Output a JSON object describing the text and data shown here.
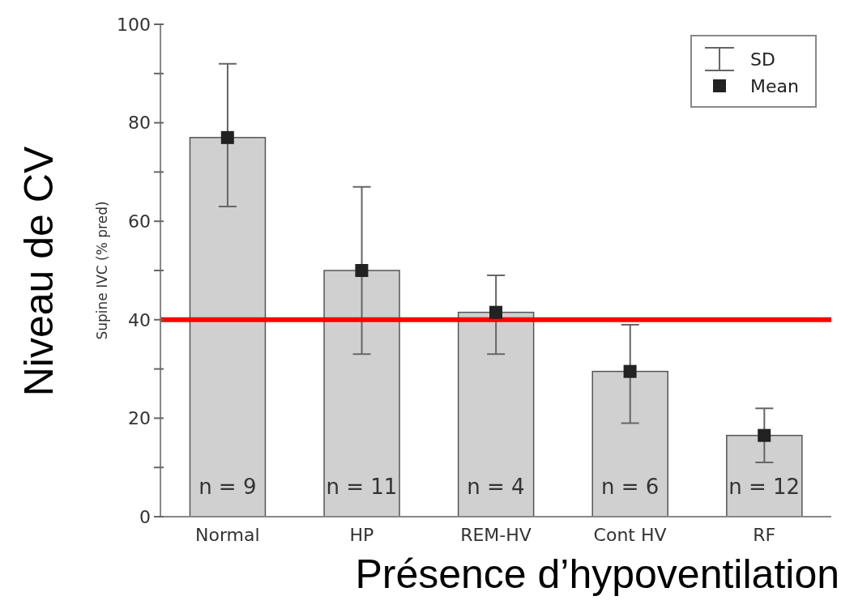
{
  "chart_data": {
    "type": "bar",
    "xlabel": "Présence d’hypoventilation",
    "ylabel": "Supine IVC (% pred)",
    "categories": [
      "Normal",
      "HP",
      "REM-HV",
      "Cont HV",
      "RF"
    ],
    "series": [
      {
        "type": "bar",
        "color": "#d0d0d0",
        "values": [
          77,
          50,
          41.5,
          29.5,
          16.5
        ],
        "errors": [
          [
            63,
            92
          ],
          [
            33,
            67
          ],
          [
            33,
            49
          ],
          [
            19,
            39
          ],
          [
            11,
            22
          ]
        ]
      },
      {
        "type": "scatter",
        "name": "Mean",
        "color": "#222222",
        "marker": "square",
        "values": [
          77,
          50,
          41.5,
          29.5,
          16.5
        ]
      }
    ],
    "ylim": [
      0,
      100
    ],
    "yticks": [
      0,
      {
        "value": 10,
        "label": null
      },
      20,
      {
        "value": 30,
        "label": null
      },
      40,
      {
        "value": 50,
        "label": null
      },
      60,
      {
        "value": 70,
        "label": null
      },
      80,
      {
        "value": 90,
        "label": null
      },
      100
    ],
    "ref_lines": [
      {
        "axis": "y",
        "value": 40,
        "color": "#ff0000"
      }
    ],
    "legend": "top right",
    "grid": false,
    "annotations": [
      "SD",
      "Niveau de CV",
      {
        "text": "n = 9",
        "x": "Normal",
        "y": 0
      },
      {
        "text": "n = 11",
        "x": "HP",
        "y": 0
      },
      {
        "text": "n = 4",
        "x": "REM-HV",
        "y": 0
      },
      {
        "text": "n = 6",
        "x": "Cont HV",
        "y": 0
      },
      {
        "text": "n = 12",
        "x": "RF",
        "y": 0
      }
    ]
  }
}
